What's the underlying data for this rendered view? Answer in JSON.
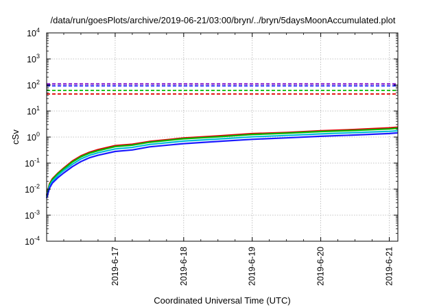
{
  "chart_data": {
    "type": "line",
    "title": "/data/run/goesPlots/archive/2019-06-21/03:00/bryn/../bryn/5daysMoonAccumulated.plot",
    "xlabel": "Coordinated Universal Time (UTC)",
    "ylabel": "cSv",
    "yscale": "log",
    "ylim": [
      0.0001,
      10000
    ],
    "xlim": [
      "2019-06-16T00:00",
      "2019-06-21T03:00"
    ],
    "grid": true,
    "x_ticks": [
      "2019-6-17",
      "2019-6-18",
      "2019-6-19",
      "2019-6-20",
      "2019-6-21"
    ],
    "x_tick_dates": [
      "2019-06-17",
      "2019-06-18",
      "2019-06-19",
      "2019-06-20",
      "2019-06-21"
    ],
    "y_ticks": [
      {
        "base": "10",
        "exp": "-4",
        "value": 0.0001
      },
      {
        "base": "10",
        "exp": "-3",
        "value": 0.001
      },
      {
        "base": "10",
        "exp": "-2",
        "value": 0.01
      },
      {
        "base": "10",
        "exp": "-1",
        "value": 0.1
      },
      {
        "base": "10",
        "exp": "0",
        "value": 1
      },
      {
        "base": "10",
        "exp": "1",
        "value": 10
      },
      {
        "base": "10",
        "exp": "2",
        "value": 100
      },
      {
        "base": "10",
        "exp": "3",
        "value": 1000
      },
      {
        "base": "10",
        "exp": "4",
        "value": 10000
      }
    ],
    "thresholds": [
      {
        "color": "#7a00c8",
        "value": 110
      },
      {
        "color": "#1a1aff",
        "value": 92
      },
      {
        "color": "#00bb00",
        "value": 62
      },
      {
        "color": "#e00000",
        "value": 45
      }
    ],
    "series": [
      {
        "color": "#e00000",
        "x": [
          "2019-06-16T00:00",
          "2019-06-16T01:00",
          "2019-06-16T02:00",
          "2019-06-16T04:00",
          "2019-06-16T06:00",
          "2019-06-16T09:00",
          "2019-06-16T12:00",
          "2019-06-16T15:00",
          "2019-06-16T18:00",
          "2019-06-17T00:00",
          "2019-06-17T06:00",
          "2019-06-17T12:00",
          "2019-06-18T00:00",
          "2019-06-18T12:00",
          "2019-06-19T00:00",
          "2019-06-19T12:00",
          "2019-06-20T00:00",
          "2019-06-20T12:00",
          "2019-06-21T00:00",
          "2019-06-21T03:00"
        ],
        "y": [
          0.006,
          0.016,
          0.025,
          0.042,
          0.065,
          0.12,
          0.19,
          0.26,
          0.33,
          0.47,
          0.53,
          0.68,
          0.92,
          1.1,
          1.35,
          1.5,
          1.75,
          1.95,
          2.25,
          2.4
        ]
      },
      {
        "color": "#00bb00",
        "x": [
          "2019-06-16T00:00",
          "2019-06-16T01:00",
          "2019-06-16T02:00",
          "2019-06-16T04:00",
          "2019-06-16T06:00",
          "2019-06-16T09:00",
          "2019-06-16T12:00",
          "2019-06-16T15:00",
          "2019-06-16T18:00",
          "2019-06-17T00:00",
          "2019-06-17T06:00",
          "2019-06-17T12:00",
          "2019-06-18T00:00",
          "2019-06-18T12:00",
          "2019-06-19T00:00",
          "2019-06-19T12:00",
          "2019-06-20T00:00",
          "2019-06-20T12:00",
          "2019-06-21T00:00",
          "2019-06-21T03:00"
        ],
        "y": [
          0.0055,
          0.015,
          0.023,
          0.04,
          0.06,
          0.11,
          0.175,
          0.24,
          0.3,
          0.43,
          0.49,
          0.63,
          0.86,
          1.02,
          1.25,
          1.4,
          1.62,
          1.8,
          2.05,
          2.2
        ]
      },
      {
        "color": "#00bcd4",
        "x": [
          "2019-06-16T00:00",
          "2019-06-16T01:00",
          "2019-06-16T02:00",
          "2019-06-16T04:00",
          "2019-06-16T06:00",
          "2019-06-16T09:00",
          "2019-06-16T12:00",
          "2019-06-16T15:00",
          "2019-06-16T18:00",
          "2019-06-17T00:00",
          "2019-06-17T06:00",
          "2019-06-17T12:00",
          "2019-06-18T00:00",
          "2019-06-18T12:00",
          "2019-06-19T00:00",
          "2019-06-19T12:00",
          "2019-06-20T00:00",
          "2019-06-20T12:00",
          "2019-06-21T00:00",
          "2019-06-21T03:00"
        ],
        "y": [
          0.005,
          0.013,
          0.02,
          0.034,
          0.052,
          0.09,
          0.145,
          0.2,
          0.25,
          0.35,
          0.4,
          0.52,
          0.7,
          0.84,
          1.02,
          1.15,
          1.32,
          1.48,
          1.65,
          1.75
        ]
      },
      {
        "color": "#1a1aff",
        "x": [
          "2019-06-16T00:00",
          "2019-06-16T01:00",
          "2019-06-16T02:00",
          "2019-06-16T04:00",
          "2019-06-16T06:00",
          "2019-06-16T09:00",
          "2019-06-16T12:00",
          "2019-06-16T15:00",
          "2019-06-16T18:00",
          "2019-06-17T00:00",
          "2019-06-17T06:00",
          "2019-06-17T12:00",
          "2019-06-18T00:00",
          "2019-06-18T12:00",
          "2019-06-19T00:00",
          "2019-06-19T12:00",
          "2019-06-20T00:00",
          "2019-06-20T12:00",
          "2019-06-21T00:00",
          "2019-06-21T03:00"
        ],
        "y": [
          0.0045,
          0.011,
          0.017,
          0.028,
          0.042,
          0.073,
          0.115,
          0.16,
          0.2,
          0.28,
          0.32,
          0.42,
          0.56,
          0.68,
          0.82,
          0.93,
          1.07,
          1.2,
          1.36,
          1.45
        ]
      }
    ]
  }
}
